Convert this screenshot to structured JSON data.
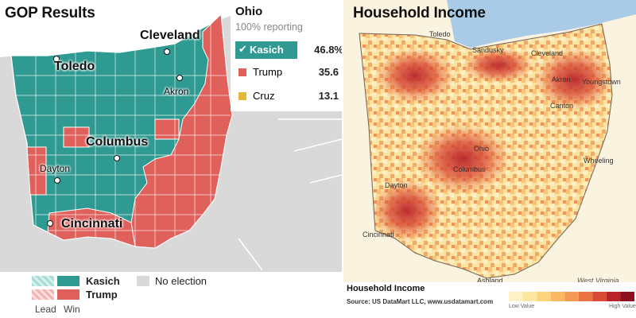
{
  "left": {
    "title": "GOP Results",
    "results": {
      "state": "Ohio",
      "reporting": "100% reporting",
      "candidates": [
        {
          "name": "Kasich",
          "pct": "46.8%",
          "color": "#2f9a91",
          "winner": true
        },
        {
          "name": "Trump",
          "pct": "35.6",
          "color": "#e0605c",
          "winner": false
        },
        {
          "name": "Cruz",
          "pct": "13.1",
          "color": "#e3b93a",
          "winner": false
        }
      ]
    },
    "cities": {
      "cleveland": "Cleveland",
      "toledo": "Toledo",
      "akron": "Akron",
      "columbus": "Columbus",
      "dayton": "Dayton",
      "cincinnati": "Cincinnati"
    },
    "legend": {
      "kasich": "Kasich",
      "trump": "Trump",
      "no_election": "No election",
      "lead": "Lead",
      "win": "Win"
    },
    "colors": {
      "kasich": "#2f9a91",
      "trump": "#e0605c",
      "neighbor": "#d9d9d9",
      "lake": "#ffffff"
    }
  },
  "right": {
    "title": "Household Income",
    "cities": {
      "toledo": "Toledo",
      "sandusky": "Sandusky",
      "cleveland": "Cleveland",
      "akron": "Akron",
      "youngstown": "Youngstown",
      "canton": "Canton",
      "ohio": "Ohio",
      "columbus": "Columbus",
      "dayton": "Dayton",
      "wheeling": "Wheeling",
      "cincinnati": "Cincinnati",
      "ashland": "Ashland",
      "west_virginia": "West Virginia"
    },
    "legend": {
      "title": "Household Income",
      "source": "Source:  US DataMart LLC,  www.usdatamart.com",
      "low": "Low Value",
      "high": "High Value",
      "scale": [
        "#fdf2c7",
        "#fde6a0",
        "#fcd57a",
        "#f9b861",
        "#f49a52",
        "#ea7343",
        "#d94a35",
        "#b8242a",
        "#8e1020"
      ]
    },
    "colors": {
      "lake": "#a9cbe8",
      "base": "#fbe7a8"
    }
  }
}
